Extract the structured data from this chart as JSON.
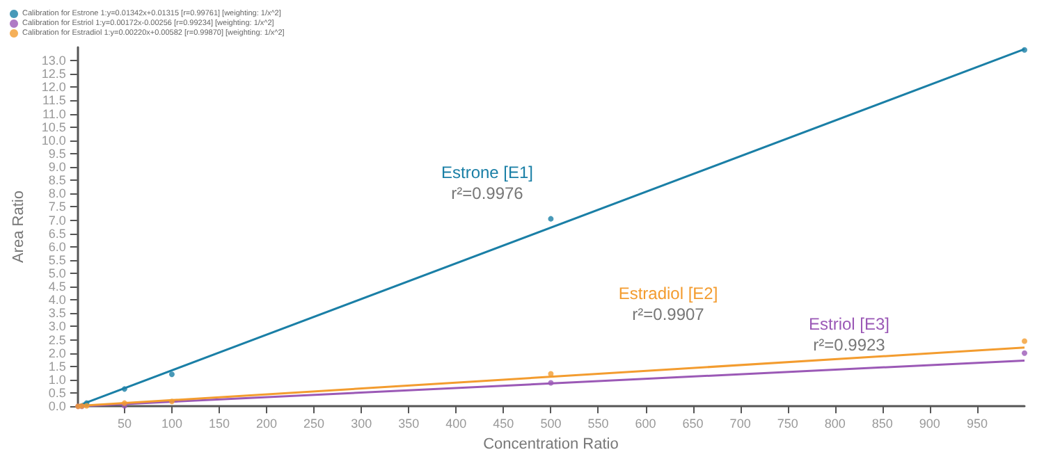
{
  "chart_data": {
    "type": "scatter",
    "xlabel": "Concentration Ratio",
    "ylabel": "Area Ratio",
    "xlim": [
      0,
      1000
    ],
    "ylim": [
      0,
      13.5
    ],
    "xticks": [
      50,
      100,
      150,
      200,
      250,
      300,
      350,
      400,
      450,
      500,
      550,
      600,
      650,
      700,
      750,
      800,
      850,
      900,
      950
    ],
    "yticks": [
      {
        "value": 0,
        "label": "0.0"
      },
      {
        "value": 0.5,
        "label": "0.5"
      },
      {
        "value": 1,
        "label": "1.0"
      },
      {
        "value": 1.5,
        "label": "1.5"
      },
      {
        "value": 2,
        "label": "2.0"
      },
      {
        "value": 2.5,
        "label": "2.5"
      },
      {
        "value": 3,
        "label": "3.0"
      },
      {
        "value": 3.5,
        "label": "3.5"
      },
      {
        "value": 4,
        "label": "4.0"
      },
      {
        "value": 4.5,
        "label": "4.5"
      },
      {
        "value": 5,
        "label": "5.0"
      },
      {
        "value": 5.5,
        "label": "5.5"
      },
      {
        "value": 6,
        "label": "6.0"
      },
      {
        "value": 6.5,
        "label": "6.5"
      },
      {
        "value": 7,
        "label": "7.0"
      },
      {
        "value": 7.5,
        "label": "7.5"
      },
      {
        "value": 8,
        "label": "8.0"
      },
      {
        "value": 8.5,
        "label": "8.5"
      },
      {
        "value": 9,
        "label": "9.0"
      },
      {
        "value": 9.5,
        "label": "9.5"
      },
      {
        "value": 10,
        "label": "10.0"
      },
      {
        "value": 10.5,
        "label": "10.5"
      },
      {
        "value": 11,
        "label": "11.0"
      },
      {
        "value": 11.5,
        "label": "11.5"
      },
      {
        "value": 12,
        "label": "12.0"
      },
      {
        "value": 12.5,
        "label": "12.5"
      },
      {
        "value": 13,
        "label": "13.0"
      }
    ],
    "marker": "circle",
    "grid": false,
    "legend": "top left",
    "series": [
      {
        "name": "Calibration for Estrone 1:y=0.01342x+0.01315 [r=0.99761] [weighting: 1/x^2]",
        "color": "#1a7fa6",
        "x": [
          10,
          50,
          100,
          500,
          1000
        ],
        "values": [
          0.12,
          0.65,
          1.2,
          7.05,
          13.4
        ]
      },
      {
        "name": "Calibration for Estriol 1:y=0.00172x-0.00256 [r=0.99234] [weighting: 1/x^2]",
        "color": "#9b59b6",
        "x": [
          1,
          5,
          10,
          50,
          100,
          500,
          1000
        ],
        "values": [
          0.0,
          0.0,
          null,
          0.02,
          null,
          0.88,
          2.0
        ]
      },
      {
        "name": "Calibration for Estradiol 1:y=0.00220x+0.00582 [r=0.99870] [weighting: 1/x^2]",
        "color": "#f39c2f",
        "x": [
          1,
          5,
          10,
          50,
          100,
          500,
          1000
        ],
        "values": [
          0.0,
          0.01,
          0.02,
          0.12,
          0.18,
          1.22,
          2.45
        ]
      },
      {
        "type": "line",
        "marker": "none",
        "color": "#1a7fa6",
        "x": [
          0,
          1000
        ],
        "values": [
          0.01,
          13.43
        ]
      },
      {
        "type": "line",
        "marker": "none",
        "color": "#9b59b6",
        "x": [
          0,
          1000
        ],
        "values": [
          0,
          1.72
        ]
      },
      {
        "type": "line",
        "marker": "none",
        "color": "#f39c2f",
        "x": [
          0,
          1000
        ],
        "values": [
          0.01,
          2.21
        ]
      }
    ],
    "annotations": [
      "Estrone [E1]",
      "r²=0.9976",
      "Estradiol [E2]",
      "r²=0.9907",
      "Estriol [E3]",
      "r²=0.9923"
    ]
  }
}
